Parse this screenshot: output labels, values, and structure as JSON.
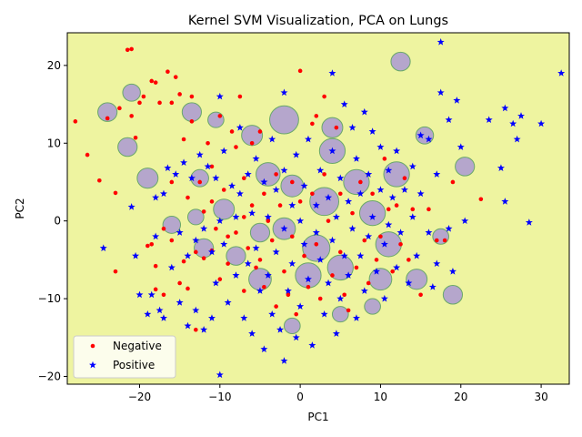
{
  "chart_data": {
    "type": "scatter",
    "title": "Kernel SVM Visualization, PCA on Lungs",
    "xlabel": "PC1",
    "ylabel": "PC2",
    "xlim": [
      -29,
      33.5
    ],
    "ylim": [
      -21,
      24.2
    ],
    "xticks": [
      -20,
      -10,
      0,
      10,
      20,
      30
    ],
    "yticks": [
      -20,
      -10,
      0,
      10,
      20
    ],
    "xtick_labels": [
      "−20",
      "−10",
      "0",
      "10",
      "20",
      "30"
    ],
    "ytick_labels": [
      "−20",
      "−10",
      "0",
      "10",
      "20"
    ],
    "grid": false,
    "legend_position": "lower-left",
    "colors": {
      "background_region": "#eef4a0",
      "positive_region": "#b5a6cc",
      "region_edge": "#6aa86a",
      "negative": "#ff0000",
      "positive": "#0000ff"
    },
    "series": [
      {
        "name": "Negative",
        "marker": "circle",
        "color": "#ff0000",
        "points": [
          [
            -28,
            12.8
          ],
          [
            -26.5,
            8.5
          ],
          [
            -25,
            5.2
          ],
          [
            -24,
            13.2
          ],
          [
            -23,
            3.6
          ],
          [
            -23,
            -6.5
          ],
          [
            -22.5,
            14.5
          ],
          [
            -21.5,
            22.0
          ],
          [
            -21,
            22.1
          ],
          [
            -21,
            13.5
          ],
          [
            -20.5,
            10.7
          ],
          [
            -20,
            15.2
          ],
          [
            -19.5,
            16.0
          ],
          [
            -19,
            -3.2
          ],
          [
            -18.5,
            18.0
          ],
          [
            -18.5,
            -3.0
          ],
          [
            -18,
            17.8
          ],
          [
            -18,
            -5.8
          ],
          [
            -18,
            -8.8
          ],
          [
            -17.5,
            15.2
          ],
          [
            -17,
            -1.0
          ],
          [
            -17,
            -9.5
          ],
          [
            -16.5,
            19.2
          ],
          [
            -16,
            15.2
          ],
          [
            -16,
            -2.5
          ],
          [
            -16,
            5.0
          ],
          [
            -15.5,
            18.5
          ],
          [
            -15,
            16.3
          ],
          [
            -15,
            -8.0
          ],
          [
            -14.5,
            10.5
          ],
          [
            -14.5,
            -5.2
          ],
          [
            -14,
            3.0
          ],
          [
            -14,
            -8.7
          ],
          [
            -13.5,
            12.8
          ],
          [
            -13.5,
            16.0
          ],
          [
            -13,
            -4.0
          ],
          [
            -13,
            -14.0
          ],
          [
            -12.5,
            5.0
          ],
          [
            -12,
            1.2
          ],
          [
            -12,
            -4.8
          ],
          [
            -11.5,
            10.0
          ],
          [
            -11,
            7.0
          ],
          [
            -11,
            2.5
          ],
          [
            -11,
            -3.8
          ],
          [
            -10.5,
            -1.0
          ],
          [
            -10,
            13.5
          ],
          [
            -10,
            -7.5
          ],
          [
            -9.5,
            4.0
          ],
          [
            -9,
            -2.0
          ],
          [
            -9,
            -5.5
          ],
          [
            -8.5,
            11.5
          ],
          [
            -8,
            9.5
          ],
          [
            -8,
            -1.5
          ],
          [
            -7.5,
            16.0
          ],
          [
            -7,
            5.5
          ],
          [
            -7,
            0.5
          ],
          [
            -7,
            -9.0
          ],
          [
            -6.5,
            -3.5
          ],
          [
            -6,
            10.0
          ],
          [
            -6,
            2.0
          ],
          [
            -5.5,
            -6.0
          ],
          [
            -5,
            11.5
          ],
          [
            -5,
            -5.0
          ],
          [
            -4.5,
            3.5
          ],
          [
            -4.5,
            -8.5
          ],
          [
            -4,
            0.0
          ],
          [
            -3.5,
            -2.5
          ],
          [
            -3,
            6.0
          ],
          [
            -3,
            -11.0
          ],
          [
            -2.5,
            2.0
          ],
          [
            -2,
            -6.5
          ],
          [
            -1.5,
            -9.5
          ],
          [
            -1,
            5.0
          ],
          [
            -1,
            -2.0
          ],
          [
            -0.5,
            -12.0
          ],
          [
            0,
            19.3
          ],
          [
            0,
            2.5
          ],
          [
            0.5,
            -4.5
          ],
          [
            1,
            -8.5
          ],
          [
            1.5,
            12.5
          ],
          [
            1.5,
            3.5
          ],
          [
            2,
            -3.0
          ],
          [
            2,
            13.5
          ],
          [
            2.5,
            -10.0
          ],
          [
            3,
            16.0
          ],
          [
            3,
            6.0
          ],
          [
            3.5,
            0.0
          ],
          [
            4,
            -7.0
          ],
          [
            4.5,
            12.0
          ],
          [
            5,
            3.5
          ],
          [
            5,
            -4.0
          ],
          [
            5.5,
            -9.5
          ],
          [
            6,
            -11.5
          ],
          [
            6.5,
            1.0
          ],
          [
            7,
            -6.0
          ],
          [
            7.5,
            5.0
          ],
          [
            8,
            -2.5
          ],
          [
            8.5,
            -8.0
          ],
          [
            9,
            3.5
          ],
          [
            9.5,
            -5.0
          ],
          [
            10,
            -2.0
          ],
          [
            10.5,
            8.0
          ],
          [
            11,
            1.5
          ],
          [
            11.5,
            -6.5
          ],
          [
            12,
            2.0
          ],
          [
            12.5,
            -3.0
          ],
          [
            13,
            5.5
          ],
          [
            13.5,
            -5.0
          ],
          [
            14,
            1.5
          ],
          [
            15,
            -9.5
          ],
          [
            16,
            1.5
          ],
          [
            17,
            -2.5
          ],
          [
            18,
            -2.5
          ],
          [
            19,
            5.0
          ],
          [
            22.5,
            2.8
          ]
        ]
      },
      {
        "name": "Positive",
        "marker": "star",
        "color": "#0000ff",
        "points": [
          [
            -24.5,
            -3.5
          ],
          [
            -21,
            1.8
          ],
          [
            -20.5,
            -4.5
          ],
          [
            -20,
            -9.5
          ],
          [
            -19,
            -12.0
          ],
          [
            -18.5,
            -9.5
          ],
          [
            -18,
            3.0
          ],
          [
            -18,
            -2.0
          ],
          [
            -17.5,
            -11.5
          ],
          [
            -17,
            3.5
          ],
          [
            -17,
            -12.5
          ],
          [
            -16.5,
            6.8
          ],
          [
            -16,
            -6.0
          ],
          [
            -15.5,
            6.0
          ],
          [
            -15,
            -1.5
          ],
          [
            -15,
            -10.5
          ],
          [
            -14.5,
            7.5
          ],
          [
            -14,
            -4.5
          ],
          [
            -14,
            -13.5
          ],
          [
            -13.5,
            5.5
          ],
          [
            -13,
            -2.5
          ],
          [
            -13,
            -11.5
          ],
          [
            -12.5,
            8.5
          ],
          [
            -12,
            -1.0
          ],
          [
            -12,
            -14.0
          ],
          [
            -11.5,
            7.0
          ],
          [
            -11,
            -4.0
          ],
          [
            -11,
            -12.5
          ],
          [
            -10.5,
            5.5
          ],
          [
            -10.5,
            -8.0
          ],
          [
            -10,
            16.0
          ],
          [
            -10,
            0.0
          ],
          [
            -10,
            -19.8
          ],
          [
            -9.5,
            9.0
          ],
          [
            -9.5,
            -3.0
          ],
          [
            -9,
            -10.5
          ],
          [
            -8.5,
            4.5
          ],
          [
            -8,
            0.5
          ],
          [
            -8,
            -7.0
          ],
          [
            -7.5,
            12.0
          ],
          [
            -7.5,
            3.5
          ],
          [
            -7,
            -12.5
          ],
          [
            -6.5,
            6.0
          ],
          [
            -6.5,
            -5.5
          ],
          [
            -6,
            1.0
          ],
          [
            -6,
            -14.5
          ],
          [
            -5.5,
            8.0
          ],
          [
            -5.5,
            -3.5
          ],
          [
            -5,
            -9.0
          ],
          [
            -4.5,
            5.0
          ],
          [
            -4.5,
            -16.5
          ],
          [
            -4,
            0.5
          ],
          [
            -4,
            -7.0
          ],
          [
            -3.5,
            10.5
          ],
          [
            -3.5,
            -12.0
          ],
          [
            -3,
            4.0
          ],
          [
            -3,
            -4.0
          ],
          [
            -2.5,
            -14.0
          ],
          [
            -2,
            16.5
          ],
          [
            -2,
            6.5
          ],
          [
            -2,
            -1.0
          ],
          [
            -2,
            -18.0
          ],
          [
            -1.5,
            -9.0
          ],
          [
            -1,
            2.0
          ],
          [
            -1,
            -5.5
          ],
          [
            -0.5,
            8.5
          ],
          [
            -0.5,
            -15.0
          ],
          [
            0,
            0.0
          ],
          [
            0,
            -11.0
          ],
          [
            0.5,
            4.5
          ],
          [
            0.5,
            -3.0
          ],
          [
            1,
            10.5
          ],
          [
            1,
            -7.5
          ],
          [
            1.5,
            -16.0
          ],
          [
            2,
            2.0
          ],
          [
            2,
            -1.5
          ],
          [
            2.5,
            6.5
          ],
          [
            2.5,
            -5.0
          ],
          [
            3,
            -12.0
          ],
          [
            3.5,
            3.0
          ],
          [
            3.5,
            -8.0
          ],
          [
            4,
            19.0
          ],
          [
            4,
            9.0
          ],
          [
            4,
            -2.5
          ],
          [
            4.5,
            0.5
          ],
          [
            4.5,
            -14.5
          ],
          [
            5,
            5.5
          ],
          [
            5,
            -10.0
          ],
          [
            5.5,
            15.0
          ],
          [
            5.5,
            -4.5
          ],
          [
            6,
            2.5
          ],
          [
            6,
            -7.0
          ],
          [
            6.5,
            12.0
          ],
          [
            6.5,
            -1.0
          ],
          [
            7,
            8.0
          ],
          [
            7,
            -12.5
          ],
          [
            7.5,
            3.5
          ],
          [
            7.5,
            -4.5
          ],
          [
            8,
            14.0
          ],
          [
            8,
            -9.0
          ],
          [
            8.5,
            6.0
          ],
          [
            8.5,
            -2.0
          ],
          [
            9,
            11.5
          ],
          [
            9,
            0.5
          ],
          [
            9.5,
            -6.5
          ],
          [
            10,
            9.5
          ],
          [
            10,
            4.0
          ],
          [
            10.5,
            -3.0
          ],
          [
            10.5,
            -10.0
          ],
          [
            11,
            6.5
          ],
          [
            11,
            -0.5
          ],
          [
            11.5,
            3.0
          ],
          [
            12,
            9.0
          ],
          [
            12,
            -6.0
          ],
          [
            12.5,
            -1.5
          ],
          [
            13,
            4.0
          ],
          [
            13.5,
            -8.0
          ],
          [
            14,
            7.0
          ],
          [
            14,
            0.5
          ],
          [
            14.5,
            -4.5
          ],
          [
            15,
            11.0
          ],
          [
            15,
            3.5
          ],
          [
            16,
            10.5
          ],
          [
            16,
            -1.5
          ],
          [
            16.5,
            -8.5
          ],
          [
            17,
            6.0
          ],
          [
            17,
            -5.5
          ],
          [
            17.5,
            23.0
          ],
          [
            17.5,
            16.5
          ],
          [
            18.5,
            13.0
          ],
          [
            18.5,
            -1.0
          ],
          [
            19,
            -6.5
          ],
          [
            19.5,
            15.5
          ],
          [
            20,
            9.5
          ],
          [
            20.5,
            0.0
          ],
          [
            23.5,
            13.0
          ],
          [
            25,
            6.8
          ],
          [
            25.5,
            14.5
          ],
          [
            25.5,
            2.5
          ],
          [
            26.5,
            12.5
          ],
          [
            27,
            10.5
          ],
          [
            27.5,
            13.5
          ],
          [
            28.5,
            -0.2
          ],
          [
            30,
            12.5
          ],
          [
            32.5,
            19.0
          ]
        ]
      }
    ],
    "positive_regions": [
      [
        -13.5,
        14.0,
        1.2
      ],
      [
        -10.5,
        13.0,
        1.0
      ],
      [
        -21,
        16.5,
        1.1
      ],
      [
        -24,
        14.0,
        1.2
      ],
      [
        -21.5,
        9.5,
        1.2
      ],
      [
        -19,
        5.5,
        1.3
      ],
      [
        -16,
        -0.5,
        1.1
      ],
      [
        -12,
        -3.5,
        1.2
      ],
      [
        -13,
        0.5,
        1.0
      ],
      [
        -12.5,
        5.5,
        1.1
      ],
      [
        -9.5,
        1.5,
        1.3
      ],
      [
        -5,
        -1.5,
        1.2
      ],
      [
        -8,
        -4.5,
        1.2
      ],
      [
        -5,
        -7.5,
        1.4
      ],
      [
        -2,
        13.0,
        1.8
      ],
      [
        -6,
        11.0,
        1.3
      ],
      [
        -4,
        6.0,
        1.5
      ],
      [
        -1,
        4.5,
        1.4
      ],
      [
        3,
        2.5,
        1.8
      ],
      [
        2,
        -3.5,
        1.7
      ],
      [
        -2,
        -1.0,
        1.4
      ],
      [
        1,
        -7.0,
        1.6
      ],
      [
        5,
        -6.0,
        1.6
      ],
      [
        4,
        9.0,
        1.6
      ],
      [
        4,
        12.0,
        1.3
      ],
      [
        7,
        5.0,
        1.6
      ],
      [
        9,
        1.0,
        1.6
      ],
      [
        11,
        -3.0,
        1.6
      ],
      [
        10,
        -7.5,
        1.4
      ],
      [
        12,
        6.0,
        1.6
      ],
      [
        14.5,
        -7.5,
        1.3
      ],
      [
        17.5,
        -2.0,
        1.0
      ],
      [
        19,
        -9.5,
        1.2
      ],
      [
        20.5,
        7.0,
        1.2
      ],
      [
        12.5,
        20.5,
        1.2
      ],
      [
        15.5,
        11.0,
        1.1
      ],
      [
        -1,
        -13.5,
        1.0
      ],
      [
        5,
        -12.0,
        1.0
      ],
      [
        9,
        -11.0,
        1.0
      ]
    ]
  }
}
